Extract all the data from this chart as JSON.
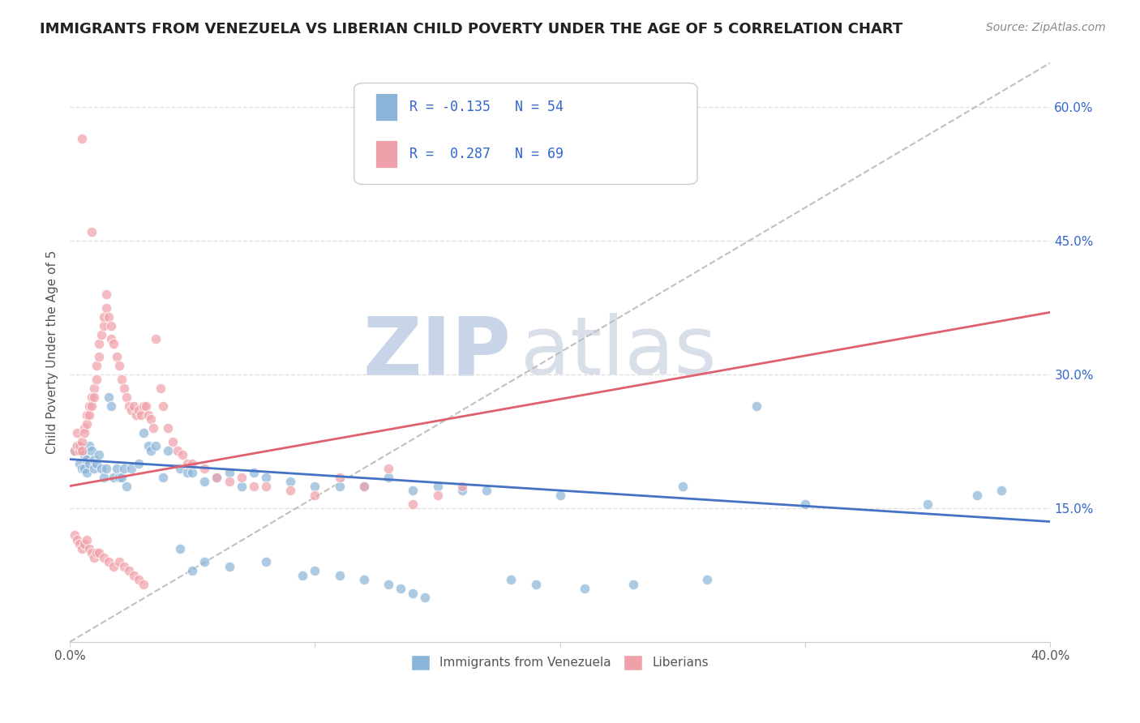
{
  "title": "IMMIGRANTS FROM VENEZUELA VS LIBERIAN CHILD POVERTY UNDER THE AGE OF 5 CORRELATION CHART",
  "source": "Source: ZipAtlas.com",
  "ylabel": "Child Poverty Under the Age of 5",
  "watermark_zip": "ZIP",
  "watermark_atlas": "atlas",
  "xlim": [
    0.0,
    0.4
  ],
  "ylim": [
    0.0,
    0.65
  ],
  "xticks": [
    0.0,
    0.1,
    0.2,
    0.3,
    0.4
  ],
  "xticklabels": [
    "0.0%",
    "",
    "",
    "",
    "40.0%"
  ],
  "yticks_right": [
    0.15,
    0.3,
    0.45,
    0.6
  ],
  "ytick_right_labels": [
    "15.0%",
    "30.0%",
    "45.0%",
    "60.0%"
  ],
  "gridline_y": [
    0.6,
    0.45,
    0.3,
    0.15
  ],
  "blue_scatter": [
    [
      0.002,
      0.215
    ],
    [
      0.003,
      0.22
    ],
    [
      0.004,
      0.2
    ],
    [
      0.005,
      0.195
    ],
    [
      0.005,
      0.215
    ],
    [
      0.006,
      0.21
    ],
    [
      0.006,
      0.195
    ],
    [
      0.007,
      0.205
    ],
    [
      0.007,
      0.19
    ],
    [
      0.008,
      0.22
    ],
    [
      0.008,
      0.2
    ],
    [
      0.009,
      0.215
    ],
    [
      0.01,
      0.205
    ],
    [
      0.01,
      0.195
    ],
    [
      0.011,
      0.2
    ],
    [
      0.012,
      0.21
    ],
    [
      0.013,
      0.195
    ],
    [
      0.014,
      0.185
    ],
    [
      0.015,
      0.195
    ],
    [
      0.016,
      0.275
    ],
    [
      0.017,
      0.265
    ],
    [
      0.018,
      0.185
    ],
    [
      0.019,
      0.195
    ],
    [
      0.02,
      0.185
    ],
    [
      0.021,
      0.185
    ],
    [
      0.022,
      0.195
    ],
    [
      0.023,
      0.175
    ],
    [
      0.025,
      0.195
    ],
    [
      0.028,
      0.2
    ],
    [
      0.03,
      0.235
    ],
    [
      0.032,
      0.22
    ],
    [
      0.033,
      0.215
    ],
    [
      0.035,
      0.22
    ],
    [
      0.038,
      0.185
    ],
    [
      0.04,
      0.215
    ],
    [
      0.045,
      0.195
    ],
    [
      0.048,
      0.19
    ],
    [
      0.05,
      0.19
    ],
    [
      0.055,
      0.18
    ],
    [
      0.06,
      0.185
    ],
    [
      0.065,
      0.19
    ],
    [
      0.07,
      0.175
    ],
    [
      0.075,
      0.19
    ],
    [
      0.08,
      0.185
    ],
    [
      0.09,
      0.18
    ],
    [
      0.1,
      0.175
    ],
    [
      0.11,
      0.175
    ],
    [
      0.12,
      0.175
    ],
    [
      0.13,
      0.185
    ],
    [
      0.14,
      0.17
    ],
    [
      0.15,
      0.175
    ],
    [
      0.16,
      0.17
    ],
    [
      0.17,
      0.17
    ],
    [
      0.2,
      0.165
    ],
    [
      0.25,
      0.175
    ],
    [
      0.28,
      0.265
    ],
    [
      0.3,
      0.155
    ],
    [
      0.35,
      0.155
    ],
    [
      0.37,
      0.165
    ],
    [
      0.38,
      0.17
    ],
    [
      0.045,
      0.105
    ],
    [
      0.05,
      0.08
    ],
    [
      0.055,
      0.09
    ],
    [
      0.065,
      0.085
    ],
    [
      0.08,
      0.09
    ],
    [
      0.095,
      0.075
    ],
    [
      0.1,
      0.08
    ],
    [
      0.11,
      0.075
    ],
    [
      0.12,
      0.07
    ],
    [
      0.13,
      0.065
    ],
    [
      0.135,
      0.06
    ],
    [
      0.14,
      0.055
    ],
    [
      0.145,
      0.05
    ],
    [
      0.18,
      0.07
    ],
    [
      0.19,
      0.065
    ],
    [
      0.21,
      0.06
    ],
    [
      0.23,
      0.065
    ],
    [
      0.26,
      0.07
    ]
  ],
  "pink_scatter": [
    [
      0.002,
      0.215
    ],
    [
      0.003,
      0.22
    ],
    [
      0.003,
      0.235
    ],
    [
      0.004,
      0.215
    ],
    [
      0.004,
      0.22
    ],
    [
      0.005,
      0.225
    ],
    [
      0.005,
      0.215
    ],
    [
      0.006,
      0.24
    ],
    [
      0.006,
      0.235
    ],
    [
      0.007,
      0.255
    ],
    [
      0.007,
      0.245
    ],
    [
      0.008,
      0.265
    ],
    [
      0.008,
      0.255
    ],
    [
      0.009,
      0.275
    ],
    [
      0.009,
      0.265
    ],
    [
      0.01,
      0.285
    ],
    [
      0.01,
      0.275
    ],
    [
      0.011,
      0.295
    ],
    [
      0.011,
      0.31
    ],
    [
      0.012,
      0.32
    ],
    [
      0.012,
      0.335
    ],
    [
      0.013,
      0.345
    ],
    [
      0.014,
      0.355
    ],
    [
      0.014,
      0.365
    ],
    [
      0.015,
      0.375
    ],
    [
      0.015,
      0.39
    ],
    [
      0.016,
      0.365
    ],
    [
      0.017,
      0.355
    ],
    [
      0.017,
      0.34
    ],
    [
      0.018,
      0.335
    ],
    [
      0.019,
      0.32
    ],
    [
      0.02,
      0.31
    ],
    [
      0.021,
      0.295
    ],
    [
      0.022,
      0.285
    ],
    [
      0.023,
      0.275
    ],
    [
      0.024,
      0.265
    ],
    [
      0.025,
      0.26
    ],
    [
      0.026,
      0.265
    ],
    [
      0.027,
      0.255
    ],
    [
      0.028,
      0.26
    ],
    [
      0.029,
      0.255
    ],
    [
      0.03,
      0.265
    ],
    [
      0.031,
      0.265
    ],
    [
      0.032,
      0.255
    ],
    [
      0.033,
      0.25
    ],
    [
      0.034,
      0.24
    ],
    [
      0.035,
      0.34
    ],
    [
      0.037,
      0.285
    ],
    [
      0.038,
      0.265
    ],
    [
      0.04,
      0.24
    ],
    [
      0.042,
      0.225
    ],
    [
      0.044,
      0.215
    ],
    [
      0.046,
      0.21
    ],
    [
      0.048,
      0.2
    ],
    [
      0.05,
      0.2
    ],
    [
      0.055,
      0.195
    ],
    [
      0.06,
      0.185
    ],
    [
      0.065,
      0.18
    ],
    [
      0.07,
      0.185
    ],
    [
      0.075,
      0.175
    ],
    [
      0.08,
      0.175
    ],
    [
      0.09,
      0.17
    ],
    [
      0.1,
      0.165
    ],
    [
      0.11,
      0.185
    ],
    [
      0.12,
      0.175
    ],
    [
      0.13,
      0.195
    ],
    [
      0.14,
      0.155
    ],
    [
      0.15,
      0.165
    ],
    [
      0.16,
      0.175
    ],
    [
      0.002,
      0.12
    ],
    [
      0.003,
      0.115
    ],
    [
      0.004,
      0.11
    ],
    [
      0.005,
      0.105
    ],
    [
      0.006,
      0.11
    ],
    [
      0.007,
      0.115
    ],
    [
      0.008,
      0.105
    ],
    [
      0.009,
      0.1
    ],
    [
      0.01,
      0.095
    ],
    [
      0.011,
      0.1
    ],
    [
      0.012,
      0.1
    ],
    [
      0.014,
      0.095
    ],
    [
      0.016,
      0.09
    ],
    [
      0.018,
      0.085
    ],
    [
      0.02,
      0.09
    ],
    [
      0.022,
      0.085
    ],
    [
      0.024,
      0.08
    ],
    [
      0.026,
      0.075
    ],
    [
      0.028,
      0.07
    ],
    [
      0.03,
      0.065
    ],
    [
      0.005,
      0.565
    ],
    [
      0.009,
      0.46
    ]
  ],
  "blue_line_x": [
    0.0,
    0.4
  ],
  "blue_line_y": [
    0.205,
    0.135
  ],
  "pink_line_x": [
    0.0,
    0.4
  ],
  "pink_line_y": [
    0.175,
    0.37
  ],
  "dashed_line_x": [
    0.0,
    0.4
  ],
  "dashed_line_y": [
    0.0,
    0.65
  ],
  "blue_line_color": "#4472c4",
  "pink_line_color": "#e06070",
  "dashed_line_color": "#c0c0c0",
  "scatter_blue_color": "#8ab4d8",
  "scatter_pink_color": "#f0a0a8",
  "background_color": "#ffffff",
  "title_color": "#222222",
  "source_color": "#888888",
  "axis_color": "#555555",
  "grid_color": "#e0e0e0",
  "watermark_color_zip": "#c8d4e8",
  "watermark_color_atlas": "#d8dfe8",
  "legend_text_color": "#3366cc",
  "right_axis_color": "#3366cc"
}
